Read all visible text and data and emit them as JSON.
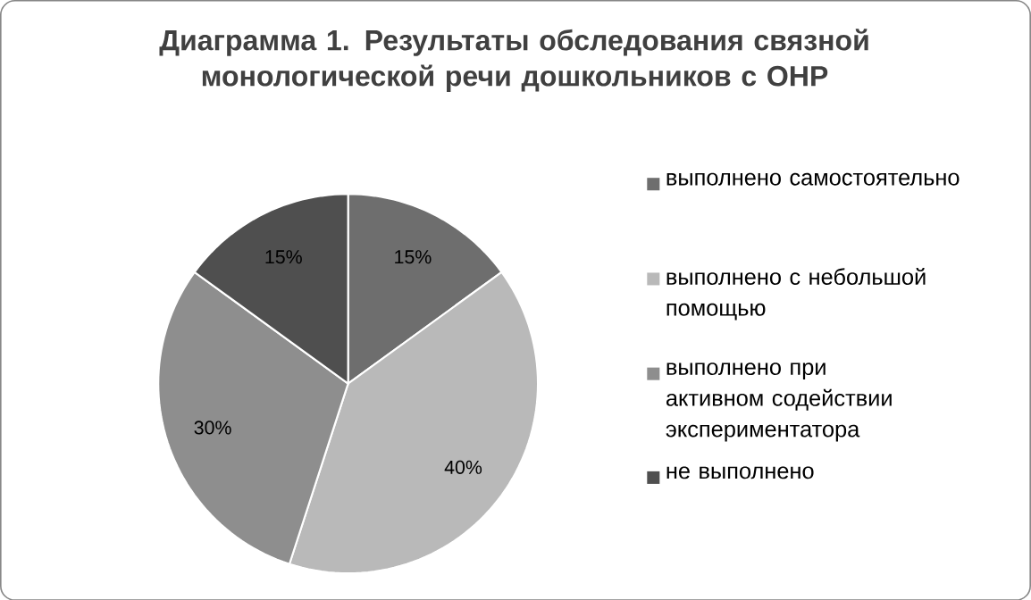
{
  "chart_data": {
    "type": "pie",
    "title": "Диаграмма 1. Результаты обследования связной монологической речи дошкольников с ОНР",
    "categories": [
      "выполнено самостоятельно",
      "выполнено с небольшой помощью",
      "выполнено при активном содействии экспериментатора",
      "не выполнено"
    ],
    "values": [
      15,
      40,
      30,
      15
    ],
    "value_labels": [
      "15%",
      "40%",
      "30%",
      "15%"
    ],
    "colors": [
      "#6e6e6e",
      "#b9b9b9",
      "#8e8e8e",
      "#4f4f4f"
    ],
    "legend": "right"
  }
}
